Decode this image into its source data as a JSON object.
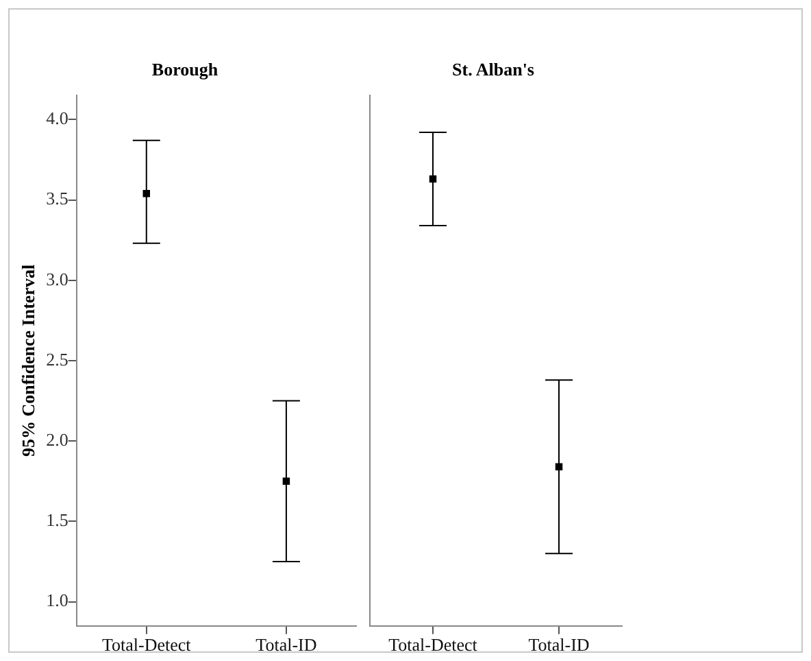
{
  "chart_data": [
    {
      "type": "scatter",
      "title": "Borough",
      "ylabel": "95% Confidence Interval",
      "categories": [
        "Total-Detect",
        "Total-ID"
      ],
      "values": [
        3.54,
        1.75
      ],
      "errors": [
        [
          3.23,
          3.87
        ],
        [
          1.25,
          2.25
        ]
      ],
      "color": "#000000",
      "marker": "square",
      "ylim": [
        0.85,
        4.15
      ],
      "yticks": [
        {
          "value": 1,
          "label": "1.0"
        },
        1.5,
        {
          "value": 2,
          "label": "2.0"
        },
        2.5,
        {
          "value": 3,
          "label": "3.0"
        },
        3.5,
        {
          "value": 4,
          "label": "4.0"
        }
      ]
    },
    {
      "type": "scatter",
      "title": "St. Alban's",
      "categories": [
        "Total-Detect",
        "Total-ID"
      ],
      "values": [
        3.63,
        1.84
      ],
      "errors": [
        [
          3.34,
          3.92
        ],
        [
          1.3,
          2.38
        ]
      ],
      "color": "#000000",
      "marker": "square",
      "ylim": [
        0.85,
        4.15
      ],
      "tick_labels": "x"
    }
  ]
}
